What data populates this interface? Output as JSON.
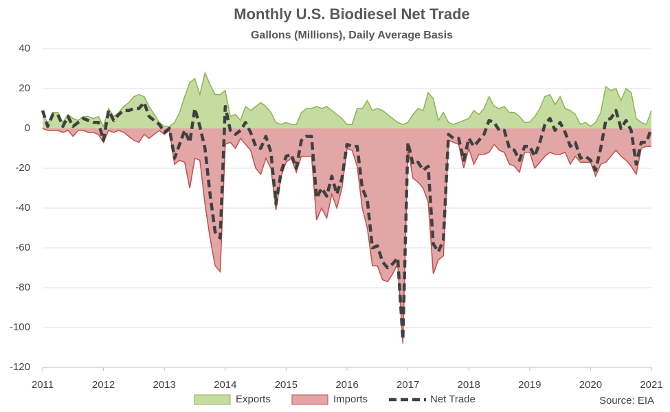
{
  "chart_data": {
    "type": "area-line",
    "title": "Monthly U.S. Biodiesel Net Trade",
    "subtitle": "Gallons (Millions), Daily Average Basis",
    "source": "Source: EIA",
    "x": [
      2011,
      2011.083,
      2011.167,
      2011.25,
      2011.333,
      2011.417,
      2011.5,
      2011.583,
      2011.667,
      2011.75,
      2011.833,
      2011.917,
      2012,
      2012.083,
      2012.167,
      2012.25,
      2012.333,
      2012.417,
      2012.5,
      2012.583,
      2012.667,
      2012.75,
      2012.833,
      2012.917,
      2013,
      2013.083,
      2013.167,
      2013.25,
      2013.333,
      2013.417,
      2013.5,
      2013.583,
      2013.667,
      2013.75,
      2013.833,
      2013.917,
      2014,
      2014.083,
      2014.167,
      2014.25,
      2014.333,
      2014.417,
      2014.5,
      2014.583,
      2014.667,
      2014.75,
      2014.833,
      2014.917,
      2015,
      2015.083,
      2015.167,
      2015.25,
      2015.333,
      2015.417,
      2015.5,
      2015.583,
      2015.667,
      2015.75,
      2015.833,
      2015.917,
      2016,
      2016.083,
      2016.167,
      2016.25,
      2016.333,
      2016.417,
      2016.5,
      2016.583,
      2016.667,
      2016.75,
      2016.833,
      2016.917,
      2017,
      2017.083,
      2017.167,
      2017.25,
      2017.333,
      2017.417,
      2017.5,
      2017.583,
      2017.667,
      2017.75,
      2017.833,
      2017.917,
      2018,
      2018.083,
      2018.167,
      2018.25,
      2018.333,
      2018.417,
      2018.5,
      2018.583,
      2018.667,
      2018.75,
      2018.833,
      2018.917,
      2019,
      2019.083,
      2019.167,
      2019.25,
      2019.333,
      2019.417,
      2019.5,
      2019.583,
      2019.667,
      2019.75,
      2019.833,
      2019.917,
      2020,
      2020.083,
      2020.167,
      2020.25,
      2020.333,
      2020.417,
      2020.5,
      2020.583,
      2020.667,
      2020.75,
      2020.833,
      2020.917,
      2021
    ],
    "series": [
      {
        "name": "Exports",
        "color": "#c5dca0",
        "line_color": "#8cb453",
        "style": "area",
        "values": [
          9,
          2,
          8,
          8,
          3,
          7,
          5,
          4,
          6,
          6,
          5,
          6,
          1,
          10,
          6,
          8,
          11,
          13,
          16,
          17,
          16,
          11,
          7,
          3,
          1,
          1,
          3,
          8,
          16,
          23,
          25,
          17,
          28,
          22,
          17,
          17,
          19,
          6,
          7,
          4,
          11,
          9,
          11,
          13,
          11,
          8,
          3,
          2,
          3,
          2,
          2,
          8,
          10,
          10,
          11,
          10,
          11,
          9,
          7,
          5,
          2,
          2,
          10,
          10,
          14,
          9,
          10,
          9,
          7,
          5,
          3,
          2,
          3,
          7,
          10,
          9,
          18,
          15,
          4,
          8,
          3,
          2,
          3,
          4,
          5,
          9,
          7,
          10,
          16,
          11,
          10,
          11,
          8,
          8,
          6,
          3,
          3,
          6,
          10,
          16,
          17,
          12,
          16,
          10,
          9,
          7,
          2,
          3,
          1,
          3,
          8,
          21,
          19,
          20,
          14,
          20,
          18,
          5,
          3,
          2,
          9
        ]
      },
      {
        "name": "Imports",
        "color": "#e3a6a6",
        "line_color": "#c0504d",
        "style": "area",
        "values": [
          0,
          -1,
          -1,
          -1,
          -2,
          -1,
          -4,
          -1,
          -1,
          -2,
          -2,
          -3,
          -7,
          -1,
          -2,
          -1,
          -2,
          -4,
          -6,
          -7,
          -3,
          -5,
          -3,
          -1,
          -3,
          -1,
          -18,
          -16,
          -17,
          -30,
          -15,
          -16,
          -38,
          -55,
          -69,
          -72,
          -8,
          -7,
          -10,
          -5,
          -8,
          -11,
          -20,
          -23,
          -15,
          -20,
          -41,
          -24,
          -17,
          -15,
          -22,
          -14,
          -14,
          -14,
          -46,
          -40,
          -45,
          -33,
          -40,
          -30,
          -10,
          -11,
          -19,
          -40,
          -50,
          -69,
          -69,
          -76,
          -77,
          -73,
          -68,
          -108,
          -10,
          -25,
          -27,
          -30,
          -37,
          -73,
          -66,
          -64,
          -6,
          -7,
          -8,
          -20,
          -10,
          -18,
          -13,
          -13,
          -12,
          -8,
          -11,
          -12,
          -18,
          -19,
          -22,
          -12,
          -12,
          -20,
          -17,
          -14,
          -12,
          -13,
          -13,
          -12,
          -18,
          -14,
          -17,
          -17,
          -17,
          -24,
          -18,
          -17,
          -14,
          -11,
          -14,
          -16,
          -19,
          -23,
          -10,
          -9,
          -9
        ]
      },
      {
        "name": "Net Trade",
        "color": "#404040",
        "style": "dashed",
        "values": [
          9,
          1,
          7,
          7,
          1,
          6,
          1,
          3,
          5,
          4,
          3,
          3,
          -6,
          9,
          4,
          7,
          9,
          9,
          10,
          10,
          13,
          6,
          4,
          2,
          -2,
          0,
          -15,
          -8,
          -1,
          -7,
          10,
          1,
          -10,
          -33,
          -52,
          -55,
          11,
          -1,
          -3,
          -1,
          3,
          -2,
          -9,
          -10,
          -4,
          -12,
          -38,
          -22,
          -14,
          -13,
          -20,
          -6,
          -4,
          -4,
          -35,
          -30,
          -34,
          -24,
          -33,
          -25,
          -8,
          -9,
          -9,
          -30,
          -36,
          -60,
          -59,
          -67,
          -70,
          -68,
          -65,
          -106,
          -7,
          -18,
          -17,
          -21,
          -19,
          -58,
          -62,
          -56,
          -3,
          -5,
          -5,
          -16,
          -5,
          -9,
          -6,
          -3,
          4,
          3,
          -1,
          -1,
          -10,
          -11,
          -16,
          -9,
          -9,
          -14,
          -7,
          2,
          5,
          -1,
          3,
          -2,
          -9,
          -7,
          -15,
          -14,
          -16,
          -21,
          -10,
          4,
          5,
          9,
          0,
          4,
          -1,
          -18,
          -7,
          -7,
          0
        ]
      }
    ],
    "xlim": [
      2011,
      2021
    ],
    "xticks": [
      2011,
      2012,
      2013,
      2014,
      2015,
      2016,
      2017,
      2018,
      2019,
      2020,
      2021
    ],
    "ylim": [
      -120,
      40
    ],
    "yticks": [
      -120,
      -100,
      -80,
      -60,
      -40,
      -20,
      0,
      20,
      40
    ],
    "grid": true,
    "legend": "bottom"
  }
}
